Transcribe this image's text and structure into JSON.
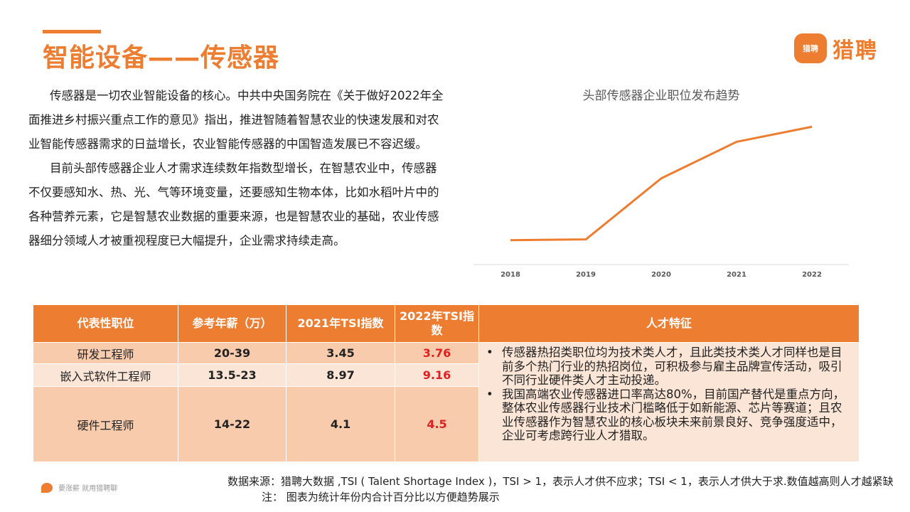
{
  "page": {
    "title": "智能设备——传感器",
    "logo_badge": "猎聘",
    "logo_text": "猎聘"
  },
  "body": {
    "para1": "传感器是一切农业智能设备的核心。中共中央国务院在《关于做好2022年全面推进乡村振兴重点工作的意见》指出，推进智随着智慧农业的快速发展和对农业智能传感器需求的日益增长，农业智能传感器的中国智造发展已不容迟缓。",
    "para2": "目前头部传感器企业人才需求连续数年指数型增长，在智慧农业中，传感器不仅要感知水、热、光、气等环境变量，还要感知生物本体，比如水稻叶片中的各种营养元素，它是智慧农业数据的重要来源，也是智慧农业的基础，农业传感器细分领域人才被重视程度已大幅提升，企业需求持续走高。"
  },
  "chart_data": {
    "type": "line",
    "title": "头部传感器企业职位发布趋势",
    "categories": [
      "2018",
      "2019",
      "2020",
      "2021",
      "2022"
    ],
    "series": [
      {
        "values": [
          0.34,
          0.35,
          1.2,
          1.71,
          1.92
        ]
      }
    ],
    "ylim": [
      0,
      2.2
    ],
    "color": "#ED7D31",
    "grid": false,
    "yaxis_visible": false
  },
  "table": {
    "headers": {
      "role": "代表性职位",
      "salary": "参考年薪（万）",
      "tsi2021": "2021年TSI指数",
      "tsi2022": "2022年TSI指数",
      "features": "人才特征"
    },
    "rows": [
      {
        "role": "研发工程师",
        "salary": "20-39",
        "tsi2021": "3.45",
        "tsi2022": "3.76"
      },
      {
        "role": "嵌入式软件工程师",
        "salary": "13.5-23",
        "tsi2021": "8.97",
        "tsi2022": "9.16"
      },
      {
        "role": "硬件工程师",
        "salary": "14-22",
        "tsi2021": "4.1",
        "tsi2022": "4.5"
      }
    ],
    "bullet": "•",
    "features": [
      "传感器热招类职位均为技术类人才，且此类技术类人才同样也是目前多个热门行业的热招岗位，可积极参与雇主品牌宣传活动，吸引不同行业硬件类人才主动投递。",
      "我国高端农业传感器进口率高达80%，目前国产替代是重点方向，整体农业传感器行业技术门槛略低于如新能源、芯片等赛道；且农业传感器作为智慧农业的核心板块未来前景良好、竞争强度适中，企业可考虑跨行业人才猎取。"
    ],
    "accent_color": "#ED7D31",
    "highlight_color": "#E02020"
  },
  "footer": {
    "slogan": "要涨薪 就用猎聘聊",
    "source": "数据来源：猎聘大数据 ,TSI ( Talent Shortage Index )，TSI > 1，表示人才供不应求；TSI < 1，表示人才供大于求.数值越高则人才越紧缺",
    "note": "注： 图表为统计年份内合计百分比以方便趋势展示"
  }
}
